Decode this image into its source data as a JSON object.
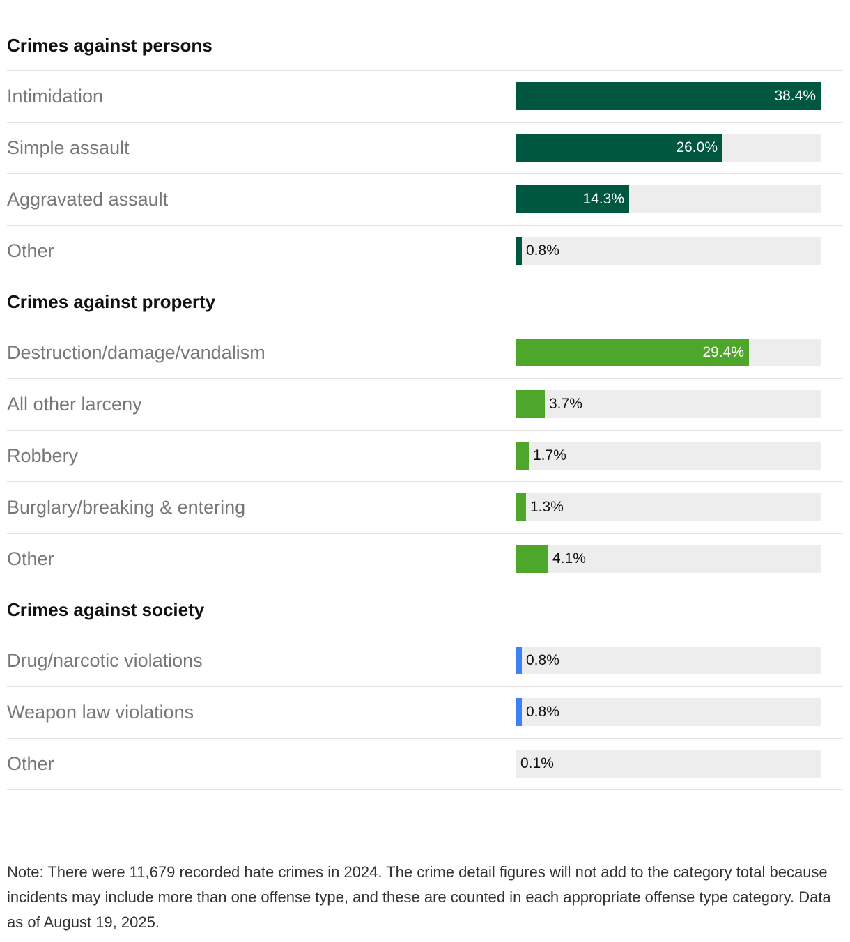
{
  "chart_data": {
    "type": "bar",
    "orientation": "horizontal",
    "xlim": [
      0,
      38.4
    ],
    "unit": "%",
    "groups": [
      {
        "title": "Crimes against persons",
        "color": "#00573f",
        "items": [
          {
            "label": "Intimidation",
            "value": 38.4,
            "display": "38.4%"
          },
          {
            "label": "Simple assault",
            "value": 26.0,
            "display": "26.0%"
          },
          {
            "label": "Aggravated assault",
            "value": 14.3,
            "display": "14.3%"
          },
          {
            "label": "Other",
            "value": 0.8,
            "display": "0.8%"
          }
        ]
      },
      {
        "title": "Crimes against property",
        "color": "#4ea72a",
        "items": [
          {
            "label": "Destruction/damage/vandalism",
            "value": 29.4,
            "display": "29.4%"
          },
          {
            "label": "All other larceny",
            "value": 3.7,
            "display": "3.7%"
          },
          {
            "label": "Robbery",
            "value": 1.7,
            "display": "1.7%"
          },
          {
            "label": "Burglary/breaking & entering",
            "value": 1.3,
            "display": "1.3%"
          },
          {
            "label": "Other",
            "value": 4.1,
            "display": "4.1%"
          }
        ]
      },
      {
        "title": "Crimes against society",
        "color": "#3b82f6",
        "items": [
          {
            "label": "Drug/narcotic violations",
            "value": 0.8,
            "display": "0.8%"
          },
          {
            "label": "Weapon law violations",
            "value": 0.8,
            "display": "0.8%"
          },
          {
            "label": "Other",
            "value": 0.1,
            "display": "0.1%"
          }
        ]
      }
    ]
  },
  "note": "Note: There were 11,679 recorded hate crimes in 2024. The crime detail figures will not add to the category total because incidents may include more than one offense type, and these are counted in each appropriate offense type category. Data as of August 19, 2025."
}
